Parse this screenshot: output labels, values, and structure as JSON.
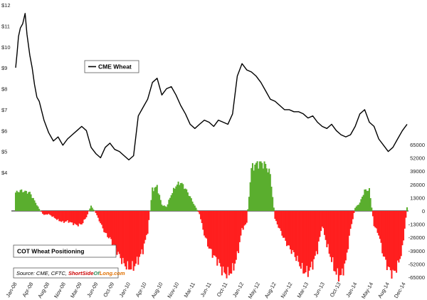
{
  "colors": {
    "price_line": "#000000",
    "long_bar": "#5aae2e",
    "short_bar": "#ff1f1f",
    "background": "#ffffff"
  },
  "legend": {
    "price_label": "CME Wheat",
    "cot_label": "COT Wheat Positioning"
  },
  "source": {
    "prefix": "Source: CME, CFTC, ",
    "brand_start": "Short",
    "brand_mid": "Side",
    "brand_of": "Of",
    "brand_end": "Long",
    "brand_suffix": ".com",
    "brand_color_a": "#cc0000",
    "brand_color_b": "#2e8b57",
    "brand_color_c": "#e07000"
  },
  "chart_data": [
    {
      "type": "line",
      "name": "CME Wheat",
      "yaxis_side": "left",
      "ylim": [
        4,
        12
      ],
      "y_ticks": [
        "$4",
        "$5",
        "$6",
        "$7",
        "$8",
        "$9",
        "$10",
        "$11",
        "$12"
      ],
      "x_ticks": [
        "Jan-08",
        "Apr-08",
        "Aug-08",
        "Nov-08",
        "Mar-09",
        "Jun-09",
        "Oct-09",
        "Jan-10",
        "Apr-10",
        "Aug-10",
        "Nov-10",
        "Mar-11",
        "Jun-11",
        "Oct-11",
        "Jan-12",
        "May-12",
        "Aug-12",
        "Nov-12",
        "Mar-13",
        "Jun-13",
        "Oct-13",
        "Jan-14",
        "May-14",
        "Aug-14",
        "Dec-14"
      ],
      "x": [
        0,
        0.3,
        0.6,
        1.0,
        1.5,
        2.0,
        2.4,
        3.0,
        3.5,
        4.0,
        4.5,
        5.0,
        6,
        7,
        8,
        9,
        10,
        11,
        12,
        13,
        14,
        15,
        16,
        17,
        18,
        19,
        20,
        21,
        22,
        23,
        24,
        25,
        26,
        27,
        28,
        29,
        30,
        31,
        32,
        33,
        34,
        35,
        36,
        37,
        38,
        39,
        40,
        41,
        42,
        43,
        44,
        45,
        46,
        47,
        48,
        49,
        50,
        51,
        52,
        53,
        54,
        55,
        56,
        57,
        58,
        59,
        60,
        61,
        62,
        63,
        64,
        65,
        66,
        67,
        68,
        69,
        70,
        71,
        72,
        73,
        74,
        75,
        76,
        77,
        78,
        79,
        80,
        81,
        82,
        83
      ],
      "values": [
        9.0,
        9.7,
        10.5,
        10.9,
        11.1,
        11.6,
        10.6,
        9.6,
        9.0,
        8.2,
        7.6,
        7.4,
        6.5,
        5.9,
        5.5,
        5.7,
        5.3,
        5.6,
        5.8,
        6.0,
        6.2,
        6.0,
        5.2,
        4.9,
        4.7,
        5.2,
        5.4,
        5.1,
        5.0,
        4.8,
        4.6,
        4.8,
        6.7,
        7.1,
        7.5,
        8.3,
        8.5,
        7.7,
        8.0,
        8.1,
        7.7,
        7.2,
        6.8,
        6.3,
        6.1,
        6.3,
        6.5,
        6.4,
        6.2,
        6.5,
        6.4,
        6.3,
        6.8,
        8.6,
        9.2,
        8.9,
        8.8,
        8.6,
        8.3,
        7.9,
        7.5,
        7.4,
        7.2,
        7.0,
        7.0,
        6.9,
        6.9,
        6.8,
        6.6,
        6.7,
        6.4,
        6.2,
        6.1,
        6.3,
        6.0,
        5.8,
        5.7,
        5.8,
        6.2,
        6.8,
        7.0,
        6.4,
        6.2,
        5.6,
        5.3,
        5.0,
        5.2,
        5.6,
        6.0,
        6.3
      ]
    },
    {
      "type": "bar",
      "name": "COT Wheat Positioning",
      "yaxis_side": "right",
      "ylim": [
        -65000,
        65000
      ],
      "y_ticks": [
        "65000",
        "52000",
        "39000",
        "26000",
        "13000",
        "0",
        "-13000",
        "-26000",
        "-39000",
        "-52000",
        "-65000"
      ],
      "x": [
        0,
        1,
        2,
        3,
        4,
        5,
        6,
        7,
        8,
        9,
        10,
        11,
        12,
        13,
        14,
        15,
        16,
        17,
        18,
        19,
        20,
        21,
        22,
        23,
        24,
        25,
        26,
        27,
        28,
        29,
        30,
        31,
        32,
        33,
        34,
        35,
        36,
        37,
        38,
        39,
        40,
        41,
        42,
        43,
        44,
        45,
        46,
        47,
        48,
        49,
        50,
        51,
        52,
        53,
        54,
        55,
        56,
        57,
        58,
        59,
        60,
        61,
        62,
        63,
        64,
        65,
        66,
        67,
        68,
        69,
        70,
        71,
        72,
        73,
        74,
        75,
        76,
        77,
        78,
        79,
        80,
        81,
        82,
        83
      ],
      "values": [
        18000,
        20000,
        19000,
        18000,
        10000,
        2000,
        -4000,
        -3000,
        -6000,
        -9000,
        -11000,
        -10000,
        -12000,
        -14000,
        -13000,
        -6000,
        5000,
        -2000,
        -12000,
        -22000,
        -27000,
        -35000,
        -44000,
        -52000,
        -56000,
        -55000,
        -48000,
        -38000,
        -20000,
        21000,
        24000,
        6000,
        4000,
        16000,
        25000,
        28000,
        22000,
        14000,
        5000,
        -3000,
        -23000,
        -36000,
        -44000,
        -50000,
        -60000,
        -62000,
        -58000,
        -44000,
        -18000,
        -12000,
        42000,
        46000,
        47000,
        45000,
        36000,
        -8000,
        -18000,
        -28000,
        -36000,
        -42000,
        -50000,
        -59000,
        -60000,
        -52000,
        -38000,
        -14000,
        -33000,
        -48000,
        -62000,
        -64000,
        -50000,
        -18000,
        3000,
        8000,
        20000,
        21000,
        -14000,
        -23000,
        -44000,
        -56000,
        -62000,
        -54000,
        -38000,
        4000
      ]
    }
  ]
}
